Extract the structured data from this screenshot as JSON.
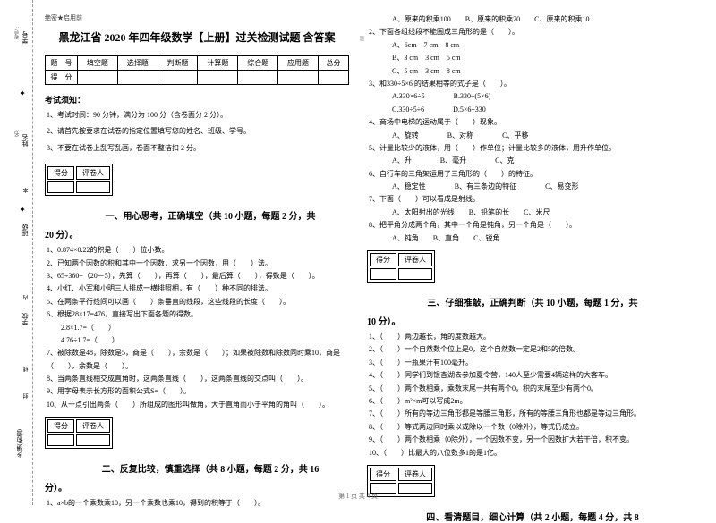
{
  "sidebar": {
    "labels": [
      "学号",
      "姓名",
      "班级",
      "学校",
      "乡镇(街道)"
    ],
    "small": [
      "考号:",
      "名:"
    ],
    "cuts": [
      "本",
      "内",
      "线",
      "封",
      "密"
    ],
    "vert": "题"
  },
  "header": {
    "mark": "绝密★启用前",
    "title": "黑龙江省 2020 年四年级数学【上册】过关检测试题 含答案"
  },
  "scoreTable": {
    "r1": [
      "题　号",
      "填空题",
      "选择题",
      "判断题",
      "计算题",
      "综合题",
      "应用题",
      "总分"
    ],
    "r2": [
      "得　分",
      "",
      "",
      "",
      "",
      "",
      "",
      ""
    ]
  },
  "notice": {
    "title": "考试须知：",
    "n1": "1、考试时间：90 分钟，满分为 100 分（含卷面分 2 分）。",
    "n2": "2、请首先按要求在试卷的指定位置填写您的姓名、班级、学号。",
    "n3": "3、不要在试卷上乱写乱画，卷面不整洁扣 2 分。"
  },
  "scoreBox": {
    "c1": "得分",
    "c2": "评卷人"
  },
  "section1": {
    "title": "一、用心思考，正确填空（共 10 小题，每题 2 分，共",
    "sub": "20 分）。",
    "q1": "1、0.874×0.22的积是（　　）位小数。",
    "q2": "2、已知两个因数的积和其中一个因数，求另一个因数，用（　　）法。",
    "q3": "3、65÷360÷（20－5），先算（　　），再算（　　），最后算（　　），得数是（　　）。",
    "q4": "4、小红、小军和小明三人排成一横排照相，有（　　）种不同的排法。",
    "q5": "5、在两条平行线间可以画（　　）条垂直的线段，这些线段的长度（　　）。",
    "q6": "6、根据28×17=476，直接写出下面各题的得数。",
    "q6a": "　　2.8×1.7=（　　）",
    "q6b": "　　4.76÷1.7=（　　）",
    "q7": "7、被除数是48，除数是5，商是（　　），余数是（　　）；如果被除数和除数同时乘10，商是（　　），余数是（　　）。",
    "q8": "8、当两条直线相交成直角时，这两条直线（　　），这两条直线的交点叫（　　）。",
    "q9": "9、用字母表示长方形的面积公式S=（　　）。",
    "q10": "10、从一点引出两条（　　）所组成的图形叫做角，大于直角而小于平角的角叫（　　）。"
  },
  "section2": {
    "title": "二、反复比较，慎重选择（共 8 小题，每题 2 分，共 16",
    "sub": "分）。",
    "q1": "1、a×b的一个乘数乘10，另一个乘数也乘10，得到的积等于（　　）。"
  },
  "rightCol": {
    "q1opt": "　A、原来的积乘100　　B、原来的积乘20　　C、原来的积乘10",
    "q2": "2、下面各组线段不能围成三角形的是（　　）。",
    "q2a": "　A、6cm　7 cm　8 cm",
    "q2b": "　B、3 cm　3 cm　5 cm",
    "q2c": "　C、5 cm　3 cm　8 cm",
    "q3": "3、和330÷5×6 的结果相等的式子是（　　）。",
    "q3a": "　A.330×6÷5　　　　B.330÷(5×6)",
    "q3b": "　C.330÷5÷6　　　　D.5×6÷330",
    "q4": "4、商场中电梯的运动属于（　　）现象。",
    "q4opt": "　A、旋转　　　　B、对称　　　　C、平移",
    "q5": "5、计量比较少的液体，用（　　）作单位；计量比较多的液体，用升作单位。",
    "q5opt": "　A、升　　　　B、毫升　　　　C、克",
    "q6": "6、自行车的三角架运用了三角形的（　　）的特征。",
    "q6opt": "　A、稳定性　　　　B、有三条边的特征　　　　C、易变形",
    "q7": "7、下面（　　）可以看成是射线。",
    "q7opt": "　A、太阳射出的光线　　B、铅笔的长　　C、米尺",
    "q8": "8、把平角分成两个角，其中一个角是钝角，另一个角是（　　）。",
    "q8opt": "　A、钝角　　B、直角　　C、锐角"
  },
  "section3": {
    "title": "三、仔细推敲，正确判断（共 10 小题，每题 1 分，共",
    "sub": "10 分）。",
    "q1": "1、（　　）两边越长，角的度数越大。",
    "q2": "2、（　　）一个自然数个位上是0，这个自然数一定是2和5的倍数。",
    "q3": "3、（　　）一瓶果汁有100毫升。",
    "q4": "4、（　　）同学们到银杏湖去参加夏令营，140人至少需要4辆这样的大客车。",
    "q5": "5、（　　）两个数相乘，乘数末尾一共有两个0，积的末尾至少有两个0。",
    "q6": "6、（　　）m²×m可以写成2m。",
    "q7": "7、（　　）所有的等边三角形都是等腰三角形，所有的等腰三角形也都是等边三角形。",
    "q8": "8、（　　）等式两边同时乘以或除以一个数（0除外），等式仍成立。",
    "q9": "9、（　　）两个数相乘（0除外），一个因数不变，另一个因数扩大若干倍，积不变。",
    "q10": "10、（　　）比最大的八位数多1的是1亿。"
  },
  "section4": {
    "title": "四、看清题目，细心计算（共 2 小题，每题 4 分，共 8"
  },
  "footer": "第 1 页 共 4 页"
}
